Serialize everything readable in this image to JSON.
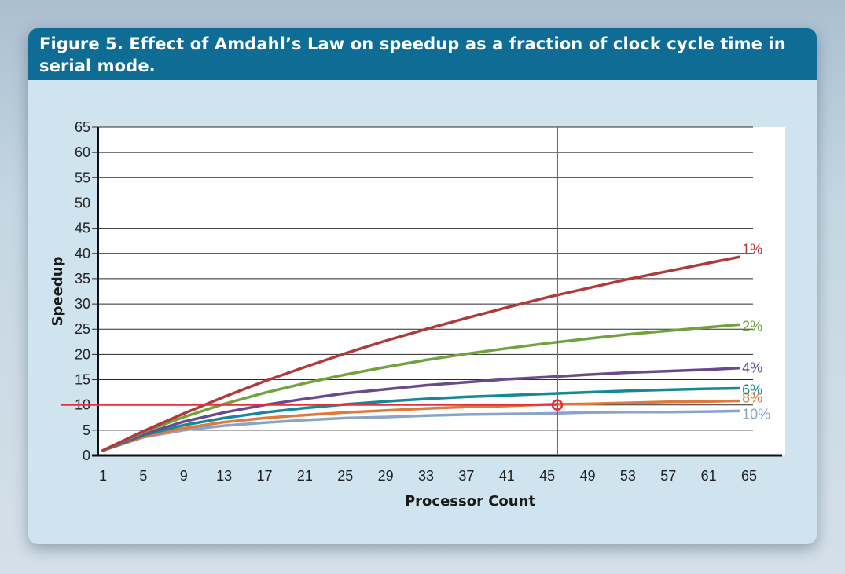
{
  "chart_data": {
    "type": "line",
    "title": "Figure 5. Effect of Amdahl’s Law on speedup as a fraction of clock cycle time in serial mode.",
    "xlabel": "Processor Count",
    "ylabel": "Speedup",
    "x_ticks": [
      "1",
      "5",
      "9",
      "13",
      "17",
      "21",
      "25",
      "29",
      "33",
      "37",
      "41",
      "45",
      "49",
      "53",
      "57",
      "61",
      "65"
    ],
    "y_ticks": [
      "0",
      "5",
      "10",
      "15",
      "20",
      "25",
      "30",
      "35",
      "40",
      "45",
      "50",
      "55",
      "60",
      "65"
    ],
    "xlim": [
      1,
      65
    ],
    "ylim": [
      0,
      65
    ],
    "grid": "horizontal",
    "series": [
      {
        "name": "1%",
        "color": "#b03a3a",
        "serial_fraction": 0.01,
        "x": [
          1,
          5,
          9,
          13,
          17,
          21,
          25,
          29,
          33,
          37,
          41,
          45,
          49,
          53,
          57,
          61,
          64
        ],
        "values": [
          1.0,
          4.8,
          8.3,
          11.6,
          14.7,
          17.5,
          20.2,
          22.7,
          25.0,
          27.2,
          29.3,
          31.3,
          33.1,
          34.9,
          36.5,
          38.1,
          39.3
        ]
      },
      {
        "name": "2%",
        "color": "#72a23e",
        "serial_fraction": 0.02,
        "x": [
          1,
          5,
          9,
          13,
          17,
          21,
          25,
          29,
          33,
          37,
          41,
          45,
          49,
          53,
          57,
          61,
          64
        ],
        "values": [
          1.0,
          4.6,
          7.6,
          10.2,
          12.4,
          14.3,
          16.0,
          17.5,
          18.9,
          20.1,
          21.2,
          22.2,
          23.1,
          24.0,
          24.7,
          25.4,
          25.9
        ]
      },
      {
        "name": "4%",
        "color": "#6a4a8c",
        "serial_fraction": 0.04,
        "x": [
          1,
          5,
          9,
          13,
          17,
          21,
          25,
          29,
          33,
          37,
          41,
          45,
          49,
          53,
          57,
          61,
          64
        ],
        "values": [
          1.0,
          4.2,
          6.7,
          8.5,
          10.0,
          11.2,
          12.3,
          13.1,
          13.9,
          14.5,
          15.1,
          15.5,
          16.0,
          16.4,
          16.7,
          17.0,
          17.3
        ]
      },
      {
        "name": "6%",
        "color": "#17879a",
        "serial_fraction": 0.06,
        "x": [
          1,
          5,
          9,
          13,
          17,
          21,
          25,
          29,
          33,
          37,
          41,
          45,
          49,
          53,
          57,
          61,
          64
        ],
        "values": [
          1.0,
          4.0,
          6.0,
          7.4,
          8.5,
          9.4,
          10.1,
          10.7,
          11.2,
          11.6,
          11.9,
          12.2,
          12.5,
          12.8,
          13.0,
          13.2,
          13.3
        ]
      },
      {
        "name": "8%",
        "color": "#e07a3c",
        "serial_fraction": 0.08,
        "x": [
          1,
          5,
          9,
          13,
          17,
          21,
          25,
          29,
          33,
          37,
          41,
          45,
          49,
          53,
          57,
          61,
          64
        ],
        "values": [
          1.0,
          3.7,
          5.4,
          6.6,
          7.4,
          8.0,
          8.5,
          8.9,
          9.3,
          9.6,
          9.8,
          10.1,
          10.2,
          10.4,
          10.6,
          10.7,
          10.8
        ]
      },
      {
        "name": "10%",
        "color": "#8aa3c8",
        "serial_fraction": 0.1,
        "x": [
          1,
          5,
          9,
          13,
          17,
          21,
          25,
          29,
          33,
          37,
          41,
          45,
          49,
          53,
          57,
          61,
          64
        ],
        "values": [
          1.0,
          3.6,
          5.0,
          5.9,
          6.5,
          7.0,
          7.4,
          7.6,
          7.9,
          8.1,
          8.2,
          8.3,
          8.5,
          8.6,
          8.6,
          8.7,
          8.8
        ]
      }
    ],
    "annotations": {
      "vertical_line_x": 46,
      "horizontal_line_y": 10,
      "marker": {
        "x": 46,
        "y": 10
      },
      "line_color": "#e8303a"
    }
  }
}
